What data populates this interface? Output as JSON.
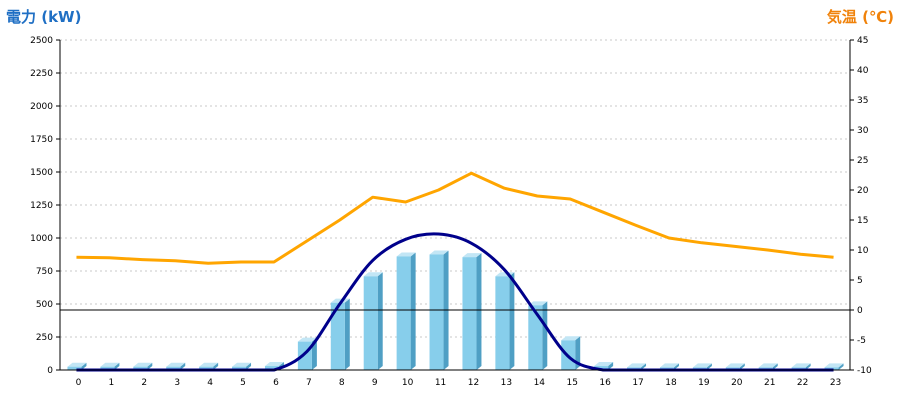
{
  "chart_data": {
    "type": "bar",
    "ylabel_left": "電力 (kW)",
    "ylabel_right": "気温 (℃)",
    "categories": [
      "0",
      "1",
      "2",
      "3",
      "4",
      "5",
      "6",
      "7",
      "8",
      "9",
      "10",
      "11",
      "12",
      "13",
      "14",
      "15",
      "16",
      "17",
      "18",
      "19",
      "20",
      "21",
      "22",
      "23"
    ],
    "ylim_left": [
      0,
      2500
    ],
    "yticks_left": [
      "0",
      "250",
      "500",
      "750",
      "1000",
      "1250",
      "1500",
      "1750",
      "2000",
      "2250",
      "2500"
    ],
    "ylim_right": [
      -10,
      45
    ],
    "yticks_right": [
      "-10",
      "-5",
      "0",
      "5",
      "10",
      "15",
      "20",
      "25",
      "30",
      "35",
      "40",
      "45"
    ],
    "grid": true,
    "series": [
      {
        "type": "bar",
        "axis": "left",
        "color": "#87ceeb",
        "values": [
          25,
          25,
          25,
          25,
          25,
          25,
          30,
          215,
          510,
          710,
          860,
          875,
          855,
          710,
          490,
          225,
          30,
          20,
          20,
          20,
          20,
          20,
          20,
          20
        ]
      },
      {
        "type": "line",
        "axis": "right",
        "color": "#ffa500",
        "values": [
          8.8,
          8.7,
          8.4,
          8.2,
          7.8,
          8.0,
          8.0,
          11.5,
          15.0,
          18.8,
          18.0,
          20.0,
          22.8,
          20.3,
          19.0,
          18.5,
          16.3,
          14.1,
          12.0,
          11.2,
          10.6,
          10.0,
          9.3,
          8.8
        ]
      },
      {
        "type": "line",
        "axis": "left",
        "color": "#00008b",
        "curve": "smooth",
        "values": [
          0,
          0,
          0,
          0,
          0,
          0,
          0,
          140,
          500,
          830,
          990,
          1030,
          960,
          760,
          420,
          90,
          0,
          0,
          0,
          0,
          0,
          0,
          0,
          0
        ]
      }
    ],
    "reference_line": {
      "axis": "right",
      "value": 0,
      "color": "#000000"
    }
  },
  "colors": {
    "left_title": "#1f6fc4",
    "right_title": "#f0820a",
    "bar_front": "#87ceeb",
    "bar_side": "#4f9fc4",
    "bar_top": "#c2e6f5",
    "temp_line": "#ffa500",
    "power_curve": "#00008b",
    "grid": "#c8c8c8"
  }
}
